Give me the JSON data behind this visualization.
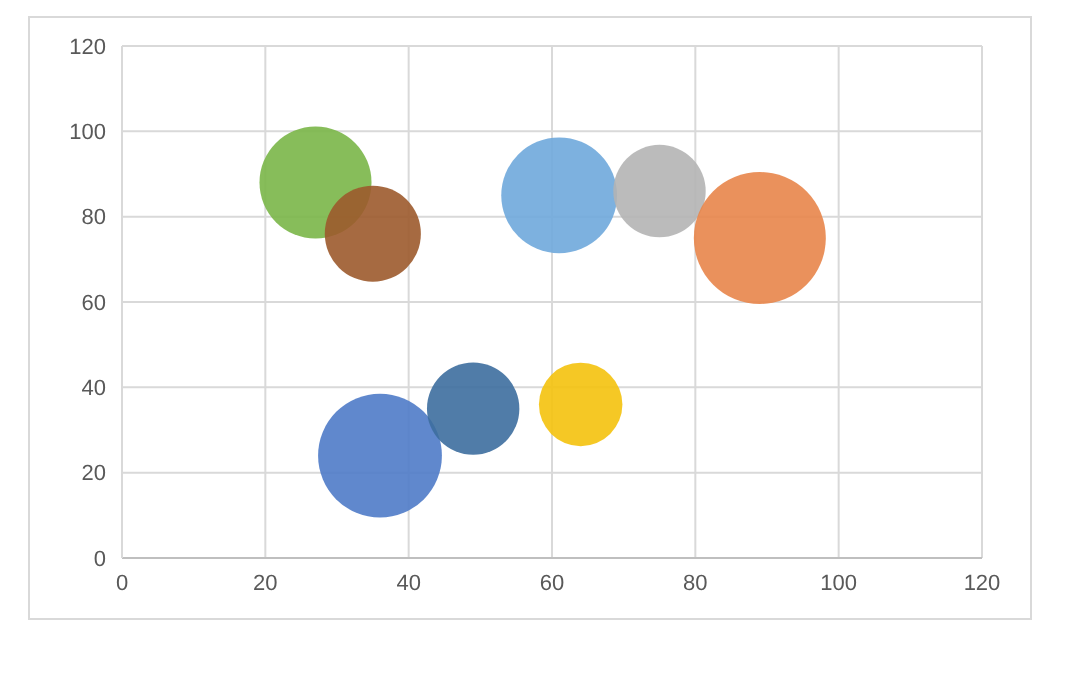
{
  "chart_data": {
    "type": "bubble",
    "x": [
      27,
      35,
      61,
      75,
      89,
      36,
      49,
      64
    ],
    "values": [
      88,
      76,
      85,
      86,
      75,
      24,
      35,
      36
    ],
    "sizes": [
      0.72,
      0.53,
      0.77,
      0.49,
      1,
      0.88,
      0.49,
      0.4
    ],
    "colors": [
      "#7ab648",
      "#9c5a2c",
      "#6fa8dc",
      "#b4b4b4",
      "#e8854a",
      "#4f7bc8",
      "#3d6e9e",
      "#f4c20d"
    ],
    "xlim": [
      0,
      120
    ],
    "xticks": [
      0,
      20,
      40,
      60,
      80,
      100,
      120
    ],
    "ylim": [
      0,
      120
    ],
    "yticks": [
      0,
      20,
      40,
      60,
      80,
      100,
      120
    ],
    "grid": true
  }
}
